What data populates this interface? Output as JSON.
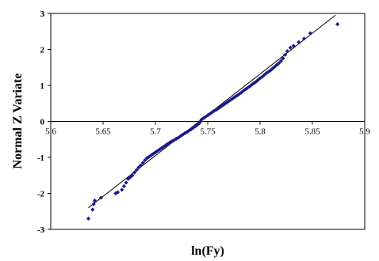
{
  "chart_data": {
    "type": "scatter",
    "title": "",
    "xlabel": "ln(Fy)",
    "ylabel": "Normal  Z  Variate",
    "xlim": [
      5.6,
      5.9
    ],
    "ylim": [
      -3,
      3
    ],
    "x_ticks": [
      "5.6",
      "5.65",
      "5.7",
      "5.75",
      "5.8",
      "5.85",
      "5.9"
    ],
    "y_ticks": [
      "3",
      "2",
      "1",
      "0",
      "-1",
      "-2",
      "-3"
    ],
    "grid": false,
    "legend": "none",
    "colors": {
      "points": "#1a1a8c",
      "fit_line": "#000000",
      "axes": "#000000"
    },
    "series": [
      {
        "kind": "points",
        "points": [
          [
            5.636,
            -2.7
          ],
          [
            5.64,
            -2.45
          ],
          [
            5.641,
            -2.3
          ],
          [
            5.642,
            -2.2
          ],
          [
            5.648,
            -2.12
          ],
          [
            5.662,
            -2.0
          ],
          [
            5.664,
            -1.97
          ],
          [
            5.668,
            -1.9
          ],
          [
            5.67,
            -1.8
          ],
          [
            5.672,
            -1.7
          ],
          [
            5.674,
            -1.6
          ],
          [
            5.676,
            -1.55
          ],
          [
            5.678,
            -1.5
          ],
          [
            5.68,
            -1.42
          ],
          [
            5.682,
            -1.35
          ],
          [
            5.684,
            -1.28
          ],
          [
            5.686,
            -1.22
          ],
          [
            5.688,
            -1.15
          ],
          [
            5.69,
            -1.08
          ],
          [
            5.692,
            -1.02
          ],
          [
            5.694,
            -0.98
          ],
          [
            5.696,
            -0.94
          ],
          [
            5.698,
            -0.9
          ],
          [
            5.7,
            -0.86
          ],
          [
            5.702,
            -0.82
          ],
          [
            5.704,
            -0.78
          ],
          [
            5.706,
            -0.74
          ],
          [
            5.708,
            -0.7
          ],
          [
            5.71,
            -0.66
          ],
          [
            5.712,
            -0.62
          ],
          [
            5.714,
            -0.58
          ],
          [
            5.716,
            -0.55
          ],
          [
            5.718,
            -0.52
          ],
          [
            5.72,
            -0.48
          ],
          [
            5.722,
            -0.45
          ],
          [
            5.724,
            -0.41
          ],
          [
            5.726,
            -0.37
          ],
          [
            5.728,
            -0.33
          ],
          [
            5.73,
            -0.3
          ],
          [
            5.732,
            -0.26
          ],
          [
            5.734,
            -0.22
          ],
          [
            5.736,
            -0.18
          ],
          [
            5.738,
            -0.14
          ],
          [
            5.74,
            -0.1
          ],
          [
            5.742,
            -0.05
          ],
          [
            5.743,
            0.0
          ],
          [
            5.744,
            0.05
          ],
          [
            5.746,
            0.09
          ],
          [
            5.748,
            0.13
          ],
          [
            5.75,
            0.17
          ],
          [
            5.752,
            0.21
          ],
          [
            5.754,
            0.25
          ],
          [
            5.756,
            0.29
          ],
          [
            5.758,
            0.32
          ],
          [
            5.76,
            0.36
          ],
          [
            5.762,
            0.4
          ],
          [
            5.764,
            0.44
          ],
          [
            5.766,
            0.48
          ],
          [
            5.768,
            0.52
          ],
          [
            5.77,
            0.56
          ],
          [
            5.772,
            0.6
          ],
          [
            5.774,
            0.64
          ],
          [
            5.776,
            0.68
          ],
          [
            5.778,
            0.72
          ],
          [
            5.78,
            0.76
          ],
          [
            5.782,
            0.8
          ],
          [
            5.784,
            0.85
          ],
          [
            5.786,
            0.89
          ],
          [
            5.788,
            0.93
          ],
          [
            5.79,
            0.97
          ],
          [
            5.792,
            1.02
          ],
          [
            5.794,
            1.06
          ],
          [
            5.796,
            1.1
          ],
          [
            5.798,
            1.15
          ],
          [
            5.8,
            1.2
          ],
          [
            5.802,
            1.24
          ],
          [
            5.804,
            1.29
          ],
          [
            5.806,
            1.34
          ],
          [
            5.808,
            1.38
          ],
          [
            5.81,
            1.42
          ],
          [
            5.812,
            1.47
          ],
          [
            5.814,
            1.52
          ],
          [
            5.816,
            1.57
          ],
          [
            5.818,
            1.62
          ],
          [
            5.82,
            1.68
          ],
          [
            5.822,
            1.75
          ],
          [
            5.824,
            1.85
          ],
          [
            5.826,
            1.95
          ],
          [
            5.829,
            2.05
          ],
          [
            5.832,
            2.1
          ],
          [
            5.837,
            2.2
          ],
          [
            5.842,
            2.3
          ],
          [
            5.848,
            2.45
          ],
          [
            5.874,
            2.7
          ]
        ]
      },
      {
        "kind": "line",
        "points": [
          [
            5.636,
            -2.4
          ],
          [
            5.872,
            2.95
          ]
        ]
      }
    ]
  }
}
